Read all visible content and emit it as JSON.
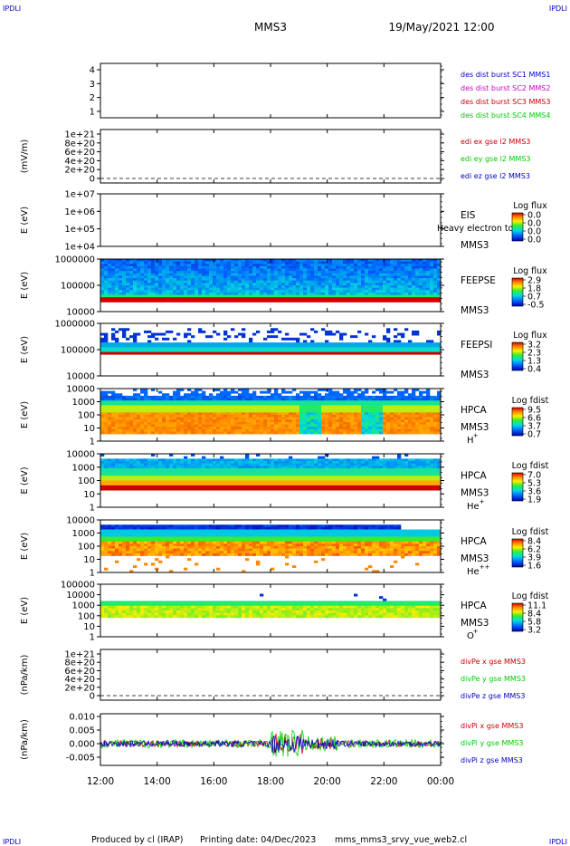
{
  "header": {
    "corner_tl": "IPDLI",
    "corner_tr": "IPDLI",
    "corner_bl": "IPDLI",
    "corner_br": "IPDLI",
    "spacecraft": "MMS3",
    "datetime": "19/May/2021 12:00"
  },
  "footer": {
    "produced_by": "Produced by cl (IRAP)",
    "printing_date": "Printing date: 04/Dec/2023",
    "script": "mms_mms3_srvy_vue_web2.cl"
  },
  "colors": {
    "blue": "#0000cc",
    "magenta": "#cc00cc",
    "red": "#cc0000",
    "green": "#00cc00",
    "axis": "#000000"
  },
  "chart_data": {
    "type": "spectrogram-stack",
    "x_ticks": [
      "12:00",
      "14:00",
      "16:00",
      "18:00",
      "20:00",
      "22:00",
      "00:00"
    ],
    "panels": [
      {
        "id": "dist",
        "type": "line",
        "ylabel": "",
        "yticks": [
          "4",
          "3",
          "2",
          "1"
        ],
        "legend": [
          {
            "text": "des dist burst SC1 MMS1",
            "color": "#0000cc"
          },
          {
            "text": "des dist burst SC2 MMS2",
            "color": "#cc00cc"
          },
          {
            "text": "des dist burst SC3 MMS3",
            "color": "#cc0000"
          },
          {
            "text": "des dist burst SC4 MMS4",
            "color": "#00cc00"
          }
        ]
      },
      {
        "id": "edi",
        "type": "line",
        "ylabel": "(mV/m)",
        "yticks": [
          "1e+21",
          "8e+20",
          "6e+20",
          "4e+20",
          "2e+20",
          "0"
        ],
        "zero_line": true,
        "legend": [
          {
            "text": "edi ex gse l2 MMS3",
            "color": "#cc0000"
          },
          {
            "text": "edi ey gse l2 MMS3",
            "color": "#00cc00"
          },
          {
            "text": "edi ez gse l2 MMS3",
            "color": "#0000cc"
          }
        ]
      },
      {
        "id": "eis",
        "type": "spectrogram",
        "ylabel": "E (eV)",
        "yticks": [
          "1e+07",
          "1e+06",
          "1e+05",
          "1e+04"
        ],
        "instrument": "EIS",
        "subtitle": "MMS3",
        "overlay": "Heavy electron to",
        "colorbar_title": "Log flux",
        "colorbar_ticks": [
          "0.0",
          "0.0",
          "0.0",
          "0.0"
        ]
      },
      {
        "id": "feepse",
        "type": "spectrogram",
        "ylabel": "E (eV)",
        "yticks": [
          "1000000",
          "100000",
          "10000"
        ],
        "instrument": "FEEPSE",
        "subtitle": "MMS3",
        "colorbar_title": "Log flux",
        "colorbar_ticks": [
          "2.9",
          "1.8",
          "0.7",
          "-0.5"
        ]
      },
      {
        "id": "feepsi",
        "type": "spectrogram",
        "ylabel": "E (eV)",
        "yticks": [
          "1000000",
          "100000",
          "10000"
        ],
        "instrument": "FEEPSI",
        "subtitle": "MMS3",
        "colorbar_title": "Log flux",
        "colorbar_ticks": [
          "3.2",
          "2.3",
          "1.3",
          "0.4"
        ]
      },
      {
        "id": "hpca_h",
        "type": "spectrogram",
        "ylabel": "E (eV)",
        "yticks": [
          "10000",
          "1000",
          "100",
          "10",
          "1"
        ],
        "instrument": "HPCA",
        "subtitle": "MMS3",
        "species": "H",
        "charge": "+",
        "colorbar_title": "Log fdist",
        "colorbar_ticks": [
          "9.5",
          "6.6",
          "3.7",
          "0.7"
        ]
      },
      {
        "id": "hpca_he",
        "type": "spectrogram",
        "ylabel": "E (eV)",
        "yticks": [
          "10000",
          "1000",
          "100",
          "10",
          "1"
        ],
        "instrument": "HPCA",
        "subtitle": "MMS3",
        "species": "He",
        "charge": "+",
        "colorbar_title": "Log fdist",
        "colorbar_ticks": [
          "7.0",
          "5.3",
          "3.6",
          "1.9"
        ]
      },
      {
        "id": "hpca_hepp",
        "type": "spectrogram",
        "ylabel": "E (eV)",
        "yticks": [
          "10000",
          "1000",
          "100",
          "10",
          "1"
        ],
        "instrument": "HPCA",
        "subtitle": "MMS3",
        "species": "He",
        "charge": "++",
        "colorbar_title": "Log fdist",
        "colorbar_ticks": [
          "8.4",
          "6.2",
          "3.9",
          "1.6"
        ]
      },
      {
        "id": "hpca_o",
        "type": "spectrogram",
        "ylabel": "E (eV)",
        "yticks": [
          "100000",
          "10000",
          "1000",
          "100",
          "10",
          "1"
        ],
        "instrument": "HPCA",
        "subtitle": "MMS3",
        "species": "O",
        "charge": "+",
        "colorbar_title": "Log fdist",
        "colorbar_ticks": [
          "11.1",
          "8.4",
          "5.8",
          "3.2"
        ]
      },
      {
        "id": "divpe",
        "type": "line",
        "ylabel": "(nPa/km)",
        "yticks": [
          "1e+21",
          "8e+20",
          "6e+20",
          "4e+20",
          "2e+20",
          "0"
        ],
        "zero_line": true,
        "legend": [
          {
            "text": "divPe x gse MMS3",
            "color": "#cc0000"
          },
          {
            "text": "divPe y gse MMS3",
            "color": "#00cc00"
          },
          {
            "text": "divPe z gse MMS3",
            "color": "#0000cc"
          }
        ]
      },
      {
        "id": "divpi",
        "type": "line",
        "ylabel": "(nPa/km)",
        "yticks": [
          "0.010",
          "0.005",
          "0.000",
          "-0.005"
        ],
        "ylim": [
          -0.008,
          0.011
        ],
        "zero_line": false,
        "legend": [
          {
            "text": "divPi x gse MMS3",
            "color": "#cc0000"
          },
          {
            "text": "divPi y gse MMS3",
            "color": "#00cc00"
          },
          {
            "text": "divPi z gse MMS3",
            "color": "#0000cc"
          }
        ]
      }
    ]
  }
}
